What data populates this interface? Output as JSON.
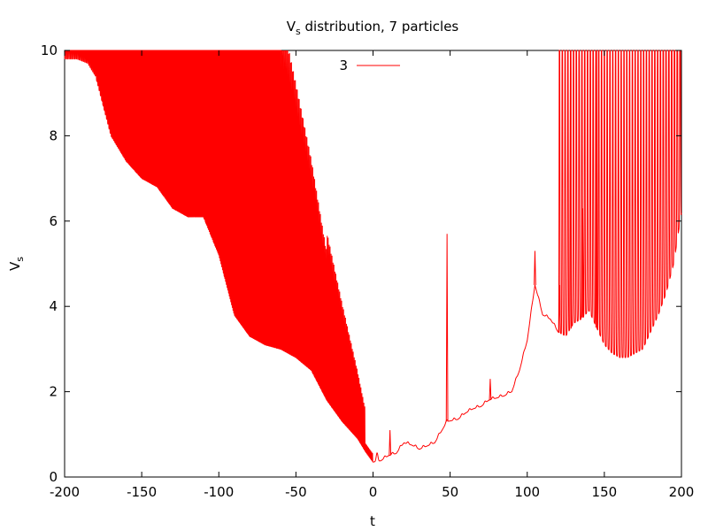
{
  "chart_data": {
    "type": "line",
    "title": "Vs distribution, 7 particles",
    "title_main": "V",
    "title_sub": "s",
    "title_rest": " distribution, 7 particles",
    "xlabel": "t",
    "ylabel": "Vs",
    "ylabel_main": "V",
    "ylabel_sub": "s",
    "xlim": [
      -200,
      200
    ],
    "ylim": [
      0,
      10
    ],
    "xticks": [
      -200,
      -150,
      -100,
      -50,
      0,
      50,
      100,
      150,
      200
    ],
    "yticks": [
      0,
      2,
      4,
      6,
      8,
      10
    ],
    "grid": false,
    "legend_position": "top-center",
    "series": [
      {
        "name": "3",
        "color": "#ff0000",
        "description": "oscillating curve: dense spikes with lower envelope descending from ~9.8 at t=-190 to ~0.35 at t=0, smooth rise with peaks to t=120, dense spikes again after t=120",
        "envelope_points": [
          [
            -192,
            9.8
          ],
          [
            -185,
            9.7
          ],
          [
            -180,
            9.4
          ],
          [
            -170,
            8.0
          ],
          [
            -160,
            7.4
          ],
          [
            -150,
            7.0
          ],
          [
            -140,
            6.8
          ],
          [
            -130,
            6.3
          ],
          [
            -120,
            6.1
          ],
          [
            -110,
            6.1
          ],
          [
            -100,
            5.2
          ],
          [
            -90,
            3.8
          ],
          [
            -80,
            3.3
          ],
          [
            -70,
            3.1
          ],
          [
            -60,
            3.0
          ],
          [
            -50,
            2.8
          ],
          [
            -40,
            2.5
          ],
          [
            -30,
            1.8
          ],
          [
            -20,
            1.3
          ],
          [
            -10,
            0.9
          ],
          [
            -5,
            0.6
          ],
          [
            0,
            0.35
          ],
          [
            5,
            0.38
          ],
          [
            10,
            0.5
          ],
          [
            15,
            0.55
          ],
          [
            20,
            0.8
          ],
          [
            25,
            0.75
          ],
          [
            30,
            0.65
          ],
          [
            40,
            0.8
          ],
          [
            48,
            1.3
          ],
          [
            55,
            1.35
          ],
          [
            60,
            1.5
          ],
          [
            65,
            1.6
          ],
          [
            70,
            1.65
          ],
          [
            75,
            1.8
          ],
          [
            80,
            1.85
          ],
          [
            85,
            1.9
          ],
          [
            90,
            2.0
          ],
          [
            95,
            2.5
          ],
          [
            100,
            3.2
          ],
          [
            105,
            4.5
          ],
          [
            110,
            3.8
          ],
          [
            115,
            3.7
          ],
          [
            120,
            3.4
          ],
          [
            125,
            3.3
          ],
          [
            130,
            3.6
          ],
          [
            135,
            3.7
          ],
          [
            140,
            3.9
          ],
          [
            145,
            3.5
          ],
          [
            150,
            3.1
          ],
          [
            155,
            2.9
          ],
          [
            160,
            2.8
          ],
          [
            165,
            2.8
          ],
          [
            170,
            2.9
          ],
          [
            175,
            3.0
          ],
          [
            180,
            3.4
          ],
          [
            185,
            3.8
          ],
          [
            190,
            4.3
          ],
          [
            195,
            5.0
          ],
          [
            200,
            6.2
          ]
        ],
        "spikes": [
          {
            "x": 11,
            "y": 1.1
          },
          {
            "x": 48,
            "y": 5.7
          },
          {
            "x": 76,
            "y": 2.3
          },
          {
            "x": 105,
            "y": 5.3
          },
          {
            "x": 121,
            "y": 4.5
          },
          {
            "x": 128,
            "y": 10.0
          },
          {
            "x": 136,
            "y": 6.3
          },
          {
            "x": 145,
            "y": 10.0
          }
        ]
      }
    ]
  }
}
